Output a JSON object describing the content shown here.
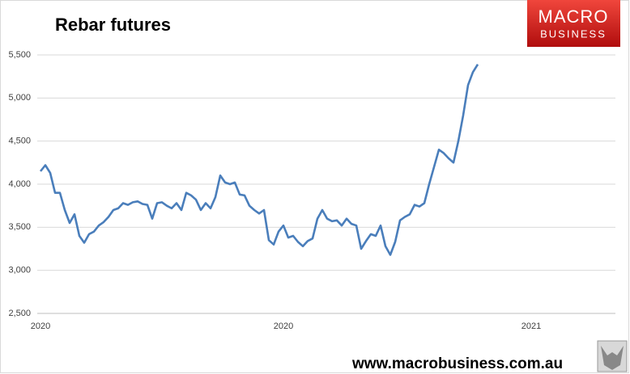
{
  "chart_data": {
    "type": "line",
    "title": "Rebar futures",
    "categories": [
      "2020",
      null,
      null,
      null,
      null,
      null,
      null,
      null,
      null,
      null,
      null,
      null,
      null,
      null,
      null,
      null,
      null,
      null,
      null,
      null,
      null,
      null,
      null,
      null,
      null,
      null,
      null,
      null,
      null,
      null,
      null,
      null,
      null,
      null,
      null,
      null,
      null,
      null,
      null,
      null,
      null,
      null,
      null,
      null,
      null,
      null,
      null,
      null,
      null,
      null,
      "2020",
      null,
      null,
      null,
      null,
      null,
      null,
      null,
      null,
      null,
      null,
      null,
      null,
      null,
      null,
      null,
      null,
      null,
      null,
      null,
      null,
      null,
      null,
      null,
      null,
      null,
      null,
      null,
      null,
      null,
      null,
      null,
      null,
      null,
      null,
      null,
      null,
      null,
      null,
      null,
      null,
      null,
      null,
      null,
      null,
      null,
      null,
      null,
      null,
      null,
      null,
      "2021",
      null,
      null,
      null,
      null,
      null,
      null,
      null,
      null,
      null,
      null,
      null,
      null,
      null,
      null,
      null,
      null,
      null
    ],
    "values": [
      4150,
      4220,
      4130,
      3900,
      3900,
      3700,
      3550,
      3650,
      3400,
      3320,
      3420,
      3450,
      3520,
      3560,
      3620,
      3700,
      3720,
      3780,
      3760,
      3790,
      3800,
      3770,
      3760,
      3600,
      3780,
      3790,
      3750,
      3720,
      3780,
      3700,
      3900,
      3870,
      3820,
      3700,
      3780,
      3720,
      3850,
      4100,
      4020,
      4000,
      4020,
      3880,
      3870,
      3750,
      3700,
      3660,
      3700,
      3350,
      3300,
      3450,
      3520,
      3380,
      3400,
      3330,
      3280,
      3340,
      3370,
      3600,
      3700,
      3600,
      3570,
      3580,
      3520,
      3600,
      3540,
      3520,
      3250,
      3340,
      3420,
      3400,
      3520,
      3280,
      3180,
      3330,
      3580,
      3620,
      3650,
      3760,
      3740,
      3780,
      4000,
      4200,
      4400,
      4360,
      4300,
      4250,
      4500,
      4800,
      5150,
      5300,
      5390,
      null,
      null,
      null,
      null,
      null,
      null,
      null,
      null,
      null,
      null,
      null,
      null,
      null,
      null,
      null,
      null,
      null,
      null,
      null,
      null,
      null,
      null,
      null,
      null,
      null,
      null,
      null,
      null
    ],
    "color": "#4a7ebb",
    "ylim": [
      2500,
      5500
    ],
    "yticks": [
      {
        "value": 2500,
        "label": "2,500"
      },
      {
        "value": 3000,
        "label": "3,000"
      },
      {
        "value": 3500,
        "label": "3,500"
      },
      {
        "value": 4000,
        "label": "4,000"
      },
      {
        "value": 4500,
        "label": "4,500"
      },
      {
        "value": 5000,
        "label": "5,000"
      },
      {
        "value": 5500,
        "label": "5,500"
      }
    ],
    "grid": true
  },
  "brand": {
    "line1": "MACRO",
    "line2": "BUSINESS",
    "footer": "www.macrobusiness.com.au"
  }
}
